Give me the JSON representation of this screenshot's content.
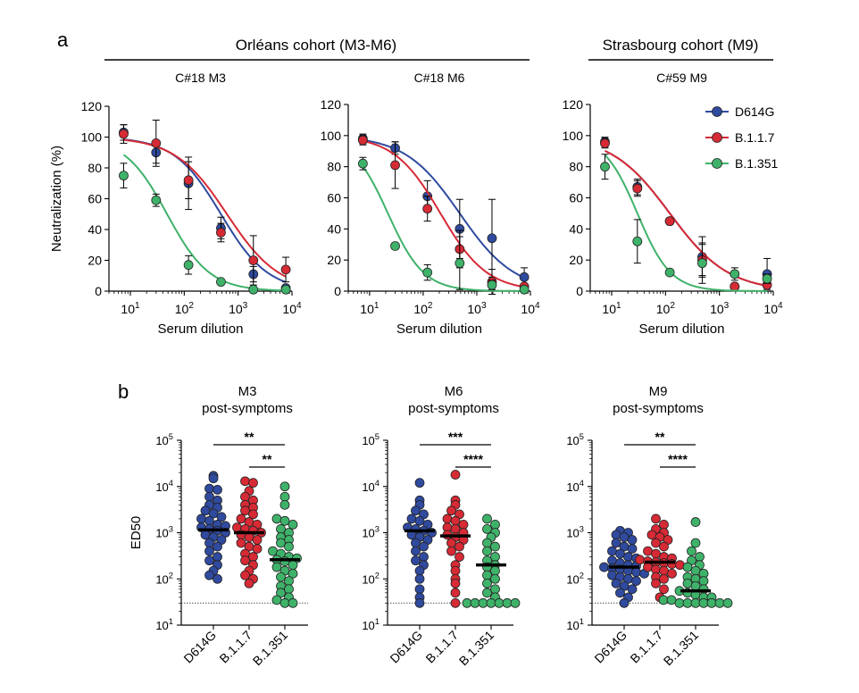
{
  "panel_letters": [
    "a",
    "b"
  ],
  "cohorts": [
    {
      "title": "Orléans cohort (M3-M6)"
    },
    {
      "title": "Strasbourg cohort (M9)"
    }
  ],
  "colors": {
    "D614G": "#2f4a9e",
    "B.1.1.7": "#d62a35",
    "B.1.351": "#3fb26a"
  },
  "icon": "legend-marker-circle-icon",
  "chart_data": [
    {
      "type": "line",
      "title": "C#18 M3",
      "xlabel": "Serum dilution",
      "ylabel": "Neutralization (%)",
      "xscale": "log",
      "xlim": [
        4,
        10000
      ],
      "ylim": [
        0,
        120
      ],
      "xticks": [
        10,
        100,
        1000,
        10000
      ],
      "xtick_labels": [
        {
          "base": "10",
          "exp": "1"
        },
        {
          "base": "10",
          "exp": "2"
        },
        {
          "base": "10",
          "exp": "3"
        },
        {
          "base": "10",
          "exp": "4"
        }
      ],
      "yticks": [
        0,
        20,
        40,
        60,
        80,
        100,
        120
      ],
      "legend": "none",
      "series": [
        {
          "variant": "D614G",
          "x": [
            7.5,
            30,
            120,
            480,
            1920,
            7680
          ],
          "y": [
            103,
            90,
            70,
            41,
            11,
            2
          ],
          "err": [
            5,
            7,
            17,
            7,
            5,
            1
          ],
          "fit": {
            "ic50": 480,
            "hill": 1.0
          }
        },
        {
          "variant": "B.1.1.7",
          "x": [
            7.5,
            30,
            120,
            480,
            1920,
            7680
          ],
          "y": [
            102,
            96,
            72,
            38,
            20,
            14
          ],
          "err": [
            6,
            15,
            12,
            6,
            16,
            8
          ],
          "fit": {
            "ic50": 620,
            "hill": 0.9
          }
        },
        {
          "variant": "B.1.351",
          "x": [
            7.5,
            30,
            120,
            480,
            1920,
            7680
          ],
          "y": [
            75,
            59,
            17,
            6,
            1,
            1
          ],
          "err": [
            8,
            4,
            6,
            1,
            1,
            1
          ],
          "fit": {
            "ic50": 48,
            "hill": 1.1
          }
        }
      ]
    },
    {
      "type": "line",
      "title": "C#18 M6",
      "xlabel": "Serum dilution",
      "ylabel": "",
      "xscale": "log",
      "xlim": [
        4,
        10000
      ],
      "ylim": [
        0,
        120
      ],
      "xticks": [
        10,
        100,
        1000,
        10000
      ],
      "xtick_labels": [
        {
          "base": "10",
          "exp": "1"
        },
        {
          "base": "10",
          "exp": "2"
        },
        {
          "base": "10",
          "exp": "3"
        },
        {
          "base": "10",
          "exp": "4"
        }
      ],
      "yticks": [
        0,
        20,
        40,
        60,
        80,
        100,
        120
      ],
      "legend": "none",
      "series": [
        {
          "variant": "D614G",
          "x": [
            7.5,
            30,
            120,
            480,
            1920,
            7680
          ],
          "y": [
            98,
            92,
            61,
            40,
            34,
            9
          ],
          "err": [
            3,
            4,
            10,
            19,
            25,
            6
          ],
          "fit": {
            "ic50": 480,
            "hill": 0.85
          }
        },
        {
          "variant": "B.1.1.7",
          "x": [
            7.5,
            30,
            120,
            480,
            1920,
            7680
          ],
          "y": [
            97,
            81,
            53,
            27,
            6,
            3
          ],
          "err": [
            3,
            15,
            8,
            12,
            8,
            2
          ],
          "fit": {
            "ic50": 210,
            "hill": 1.0
          }
        },
        {
          "variant": "B.1.351",
          "x": [
            7.5,
            30,
            120,
            480,
            1920,
            7680
          ],
          "y": [
            82,
            29,
            12,
            18,
            4,
            1
          ],
          "err": [
            4,
            2,
            5,
            17,
            3,
            1
          ],
          "fit": {
            "ic50": 22,
            "hill": 1.3
          }
        }
      ]
    },
    {
      "type": "line",
      "title": "C#59 M9",
      "xlabel": "Serum dilution",
      "ylabel": "",
      "xscale": "log",
      "xlim": [
        4,
        10000
      ],
      "ylim": [
        0,
        120
      ],
      "xticks": [
        10,
        100,
        1000,
        10000
      ],
      "xtick_labels": [
        {
          "base": "10",
          "exp": "1"
        },
        {
          "base": "10",
          "exp": "2"
        },
        {
          "base": "10",
          "exp": "3"
        },
        {
          "base": "10",
          "exp": "4"
        }
      ],
      "yticks": [
        0,
        20,
        40,
        60,
        80,
        100,
        120
      ],
      "legend": "top-right",
      "series": [
        {
          "variant": "D614G",
          "x": [
            7.5,
            30,
            120,
            480,
            1920,
            7680
          ],
          "y": [
            96,
            67,
            45,
            22,
            3,
            11
          ],
          "err": [
            3,
            5,
            2,
            13,
            1,
            10
          ],
          "fit": {
            "ic50": 120,
            "hill": 0.8
          }
        },
        {
          "variant": "B.1.1.7",
          "x": [
            7.5,
            30,
            120,
            480,
            1920,
            7680
          ],
          "y": [
            95,
            66,
            45,
            20,
            3,
            4
          ],
          "err": [
            3,
            5,
            2,
            10,
            1,
            2
          ],
          "fit": {
            "ic50": 120,
            "hill": 0.8
          }
        },
        {
          "variant": "B.1.351",
          "x": [
            7.5,
            30,
            120,
            480,
            1920,
            7680
          ],
          "y": [
            80,
            32,
            12,
            18,
            11,
            8
          ],
          "err": [
            8,
            14,
            1,
            13,
            4,
            3
          ],
          "fit": {
            "ic50": 30,
            "hill": 1.4
          }
        }
      ]
    },
    {
      "type": "scatter",
      "title": "M3\npost-symptoms",
      "ylabel": "ED50",
      "yscale": "log",
      "ylim": [
        10,
        100000
      ],
      "yticks": [
        10,
        100,
        1000,
        10000,
        100000
      ],
      "ytick_labels": [
        {
          "base": "10",
          "exp": "1"
        },
        {
          "base": "10",
          "exp": "2"
        },
        {
          "base": "10",
          "exp": "3"
        },
        {
          "base": "10",
          "exp": "4"
        },
        {
          "base": "10",
          "exp": "5"
        }
      ],
      "threshold": 30,
      "categories": [
        "D614G",
        "B.1.1.7",
        "B.1.351"
      ],
      "medians": [
        1150,
        1000,
        260
      ],
      "significance": [
        {
          "from": 0,
          "to": 2,
          "label": "**"
        },
        {
          "from": 1,
          "to": 2,
          "label": "**"
        }
      ],
      "series": [
        {
          "variant": "D614G",
          "values": [
            17000,
            15000,
            9000,
            8500,
            6000,
            5000,
            4000,
            3500,
            3000,
            2600,
            2200,
            2000,
            1800,
            1500,
            1400,
            1300,
            1200,
            1100,
            1000,
            900,
            800,
            700,
            600,
            500,
            400,
            300,
            250,
            200,
            150,
            120,
            100
          ]
        },
        {
          "variant": "B.1.1.7",
          "values": [
            13000,
            12000,
            8000,
            6000,
            5000,
            4000,
            3500,
            3000,
            2500,
            2000,
            1700,
            1500,
            1300,
            1200,
            1100,
            1000,
            900,
            800,
            700,
            600,
            500,
            450,
            350,
            300,
            250,
            200,
            150,
            120,
            100,
            80
          ]
        },
        {
          "variant": "B.1.351",
          "values": [
            10000,
            6000,
            4000,
            2000,
            1800,
            1500,
            1200,
            1000,
            800,
            700,
            600,
            500,
            400,
            350,
            300,
            280,
            260,
            240,
            200,
            180,
            150,
            130,
            110,
            90,
            70,
            60,
            50,
            40,
            35,
            30,
            30
          ]
        }
      ]
    },
    {
      "type": "scatter",
      "title": "M6\npost-symptoms",
      "ylabel": "",
      "yscale": "log",
      "ylim": [
        10,
        100000
      ],
      "yticks": [
        10,
        100,
        1000,
        10000,
        100000
      ],
      "ytick_labels": [
        {
          "base": "10",
          "exp": "1"
        },
        {
          "base": "10",
          "exp": "2"
        },
        {
          "base": "10",
          "exp": "3"
        },
        {
          "base": "10",
          "exp": "4"
        },
        {
          "base": "10",
          "exp": "5"
        }
      ],
      "threshold": 30,
      "categories": [
        "D614G",
        "B.1.1.7",
        "B.1.351"
      ],
      "medians": [
        1100,
        850,
        200
      ],
      "significance": [
        {
          "from": 0,
          "to": 2,
          "label": "***"
        },
        {
          "from": 1,
          "to": 2,
          "label": "****"
        }
      ],
      "series": [
        {
          "variant": "D614G",
          "values": [
            12000,
            5000,
            4000,
            3000,
            2500,
            2000,
            1800,
            1500,
            1300,
            1200,
            1100,
            1000,
            900,
            800,
            700,
            600,
            500,
            400,
            300,
            250,
            200,
            150,
            100,
            60,
            40,
            30
          ]
        },
        {
          "variant": "B.1.1.7",
          "values": [
            18000,
            5000,
            4000,
            3000,
            2500,
            2000,
            1800,
            1500,
            1300,
            1200,
            1000,
            900,
            800,
            700,
            600,
            500,
            400,
            300,
            200,
            150,
            100,
            80,
            50,
            30
          ]
        },
        {
          "variant": "B.1.351",
          "values": [
            2000,
            1500,
            1200,
            1000,
            800,
            600,
            500,
            400,
            300,
            250,
            200,
            180,
            150,
            120,
            100,
            80,
            60,
            50,
            40,
            30,
            30,
            30,
            30,
            30,
            30,
            30
          ]
        }
      ]
    },
    {
      "type": "scatter",
      "title": "M9\npost-symptoms",
      "ylabel": "",
      "yscale": "log",
      "ylim": [
        10,
        100000
      ],
      "yticks": [
        10,
        100,
        1000,
        10000,
        100000
      ],
      "ytick_labels": [
        {
          "base": "10",
          "exp": "1"
        },
        {
          "base": "10",
          "exp": "2"
        },
        {
          "base": "10",
          "exp": "3"
        },
        {
          "base": "10",
          "exp": "4"
        },
        {
          "base": "10",
          "exp": "5"
        }
      ],
      "threshold": 30,
      "categories": [
        "D614G",
        "B.1.1.7",
        "B.1.351"
      ],
      "medians": [
        180,
        230,
        55
      ],
      "significance": [
        {
          "from": 0,
          "to": 2,
          "label": "**"
        },
        {
          "from": 1,
          "to": 2,
          "label": "****"
        }
      ],
      "series": [
        {
          "variant": "D614G",
          "values": [
            1100,
            1000,
            900,
            800,
            700,
            600,
            500,
            450,
            400,
            350,
            300,
            280,
            250,
            220,
            200,
            190,
            180,
            170,
            160,
            150,
            140,
            130,
            120,
            110,
            100,
            90,
            80,
            70,
            60,
            50,
            40,
            30
          ]
        },
        {
          "variant": "B.1.1.7",
          "values": [
            2000,
            1500,
            1200,
            1000,
            900,
            800,
            700,
            600,
            500,
            400,
            350,
            300,
            280,
            260,
            240,
            230,
            220,
            210,
            200,
            180,
            160,
            150,
            130,
            110,
            100,
            80,
            60,
            40
          ]
        },
        {
          "variant": "B.1.351",
          "values": [
            1700,
            600,
            400,
            300,
            250,
            200,
            180,
            150,
            130,
            110,
            100,
            90,
            80,
            70,
            60,
            55,
            50,
            45,
            40,
            40,
            35,
            35,
            30,
            30,
            30,
            30,
            30,
            30,
            30
          ]
        }
      ]
    }
  ]
}
